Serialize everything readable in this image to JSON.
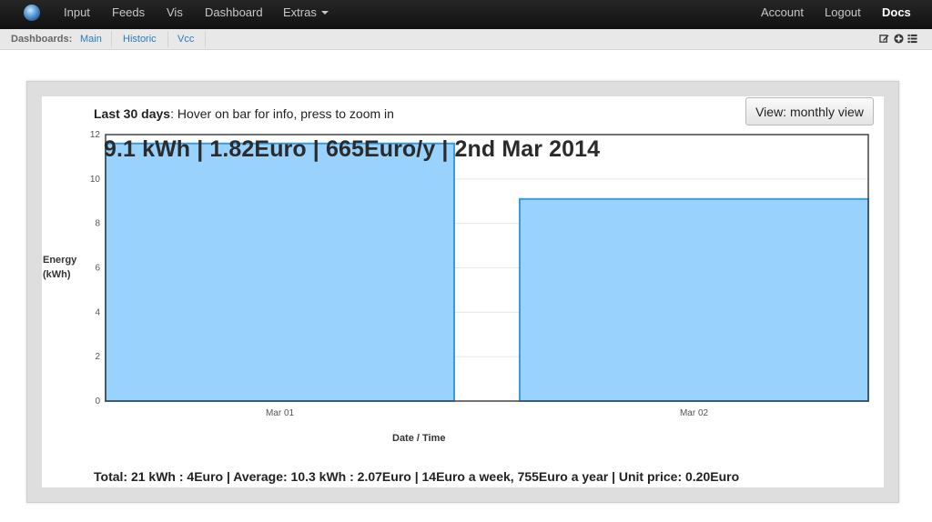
{
  "nav": {
    "left_items": [
      "Input",
      "Feeds",
      "Vis",
      "Dashboard",
      "Extras"
    ],
    "right_items": [
      "Account",
      "Logout",
      "Docs"
    ]
  },
  "subbar": {
    "label": "Dashboards:",
    "links": [
      "Main",
      "Historic",
      "Vcc"
    ],
    "icons": [
      "edit-icon",
      "add-icon",
      "list-icon"
    ]
  },
  "graph": {
    "title_bold": "Last 30 days",
    "title_rest": ": Hover on bar for info, press to zoom in",
    "view_button": "View: monthly view",
    "info_overlay": "9.1 kWh | 1.82Euro | 665Euro/y | 2nd Mar 2014",
    "totals": "Total: 21 kWh : 4Euro | Average: 10.3 kWh : 2.07Euro | 14Euro a week, 755Euro a year | Unit price: 0.20Euro"
  },
  "chart_data": {
    "type": "bar",
    "categories": [
      "Mar 01",
      "Mar 02"
    ],
    "values": [
      11.6,
      9.1
    ],
    "xlabel": "Date / Time",
    "ylabel_lines": [
      "Energy",
      "(kWh)"
    ],
    "ylim": [
      0,
      12
    ],
    "yticks": [
      0,
      2,
      4,
      6,
      8,
      10,
      12
    ],
    "grid": true,
    "bar_fill": "#99d3fd",
    "bar_stroke": "#3b9be0"
  }
}
